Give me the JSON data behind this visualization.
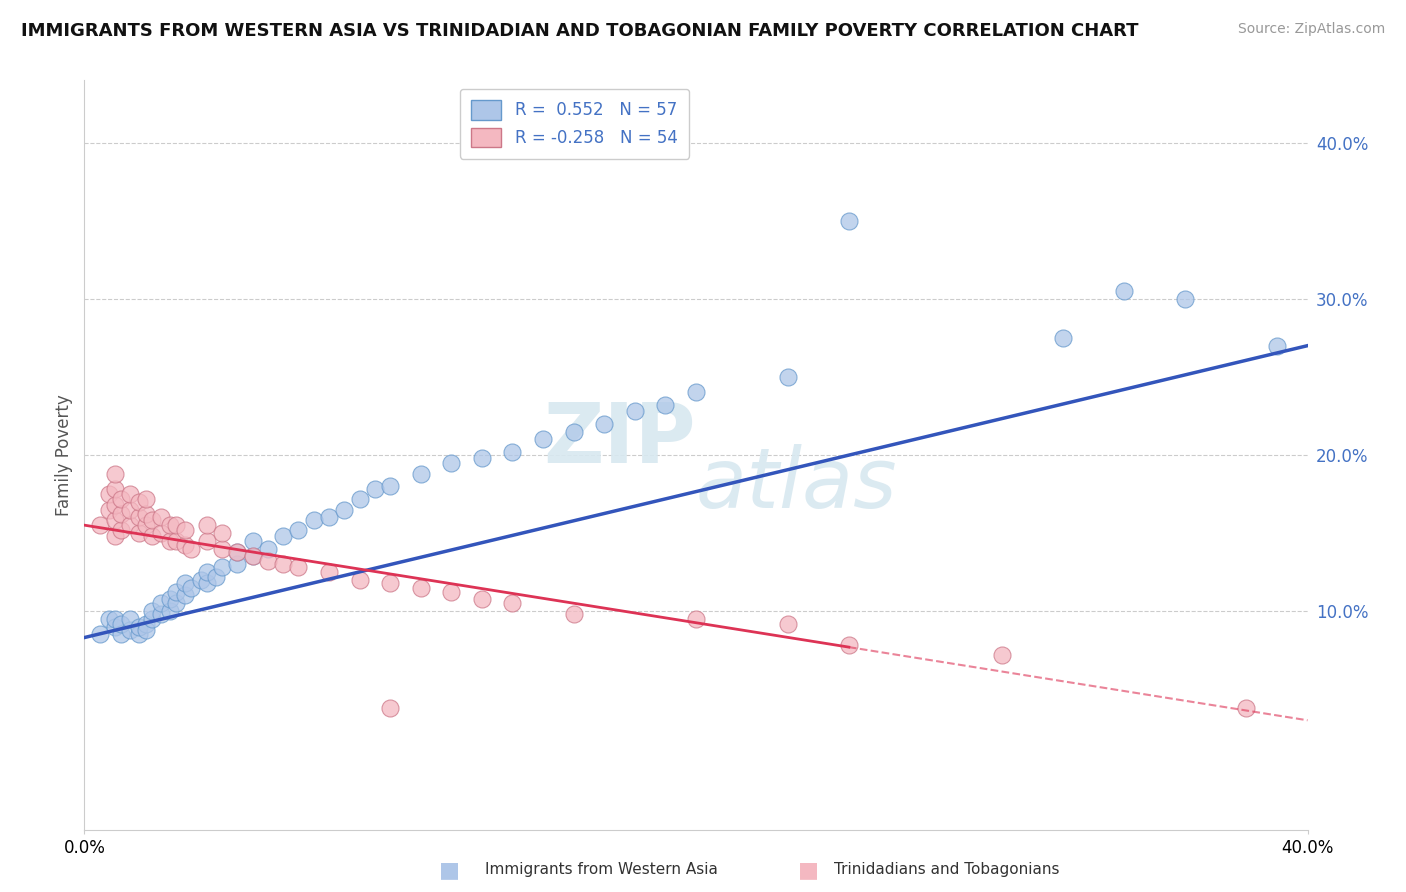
{
  "title": "IMMIGRANTS FROM WESTERN ASIA VS TRINIDADIAN AND TOBAGONIAN FAMILY POVERTY CORRELATION CHART",
  "source": "Source: ZipAtlas.com",
  "ylabel": "Family Poverty",
  "yticks": [
    "10.0%",
    "20.0%",
    "30.0%",
    "40.0%"
  ],
  "ytick_values": [
    0.1,
    0.2,
    0.3,
    0.4
  ],
  "xmin": 0.0,
  "xmax": 0.4,
  "ymin": -0.04,
  "ymax": 0.44,
  "legend1_label": "R =  0.552   N = 57",
  "legend2_label": "R = -0.258   N = 54",
  "legend1_color": "#aec6e8",
  "legend2_color": "#f4b8c1",
  "legend1_edge": "#6699CC",
  "legend2_edge": "#CC7788",
  "line1_color": "#3355BB",
  "line2_color": "#DD3355",
  "watermark_color": "#d8e8f0",
  "scatter_blue": [
    [
      0.005,
      0.085
    ],
    [
      0.008,
      0.095
    ],
    [
      0.01,
      0.09
    ],
    [
      0.01,
      0.095
    ],
    [
      0.012,
      0.085
    ],
    [
      0.012,
      0.092
    ],
    [
      0.015,
      0.088
    ],
    [
      0.015,
      0.095
    ],
    [
      0.018,
      0.085
    ],
    [
      0.018,
      0.09
    ],
    [
      0.02,
      0.092
    ],
    [
      0.02,
      0.088
    ],
    [
      0.022,
      0.095
    ],
    [
      0.022,
      0.1
    ],
    [
      0.025,
      0.098
    ],
    [
      0.025,
      0.105
    ],
    [
      0.028,
      0.1
    ],
    [
      0.028,
      0.108
    ],
    [
      0.03,
      0.105
    ],
    [
      0.03,
      0.112
    ],
    [
      0.033,
      0.11
    ],
    [
      0.033,
      0.118
    ],
    [
      0.035,
      0.115
    ],
    [
      0.038,
      0.12
    ],
    [
      0.04,
      0.118
    ],
    [
      0.04,
      0.125
    ],
    [
      0.043,
      0.122
    ],
    [
      0.045,
      0.128
    ],
    [
      0.05,
      0.13
    ],
    [
      0.05,
      0.138
    ],
    [
      0.055,
      0.135
    ],
    [
      0.055,
      0.145
    ],
    [
      0.06,
      0.14
    ],
    [
      0.065,
      0.148
    ],
    [
      0.07,
      0.152
    ],
    [
      0.075,
      0.158
    ],
    [
      0.08,
      0.16
    ],
    [
      0.085,
      0.165
    ],
    [
      0.09,
      0.172
    ],
    [
      0.095,
      0.178
    ],
    [
      0.1,
      0.18
    ],
    [
      0.11,
      0.188
    ],
    [
      0.12,
      0.195
    ],
    [
      0.13,
      0.198
    ],
    [
      0.14,
      0.202
    ],
    [
      0.15,
      0.21
    ],
    [
      0.16,
      0.215
    ],
    [
      0.17,
      0.22
    ],
    [
      0.18,
      0.228
    ],
    [
      0.19,
      0.232
    ],
    [
      0.2,
      0.24
    ],
    [
      0.23,
      0.25
    ],
    [
      0.25,
      0.35
    ],
    [
      0.32,
      0.275
    ],
    [
      0.34,
      0.305
    ],
    [
      0.36,
      0.3
    ],
    [
      0.39,
      0.27
    ]
  ],
  "scatter_pink": [
    [
      0.005,
      0.155
    ],
    [
      0.008,
      0.165
    ],
    [
      0.008,
      0.175
    ],
    [
      0.01,
      0.148
    ],
    [
      0.01,
      0.158
    ],
    [
      0.01,
      0.168
    ],
    [
      0.01,
      0.178
    ],
    [
      0.01,
      0.188
    ],
    [
      0.012,
      0.152
    ],
    [
      0.012,
      0.162
    ],
    [
      0.012,
      0.172
    ],
    [
      0.015,
      0.155
    ],
    [
      0.015,
      0.165
    ],
    [
      0.015,
      0.175
    ],
    [
      0.018,
      0.15
    ],
    [
      0.018,
      0.16
    ],
    [
      0.018,
      0.17
    ],
    [
      0.02,
      0.155
    ],
    [
      0.02,
      0.162
    ],
    [
      0.02,
      0.172
    ],
    [
      0.022,
      0.148
    ],
    [
      0.022,
      0.158
    ],
    [
      0.025,
      0.15
    ],
    [
      0.025,
      0.16
    ],
    [
      0.028,
      0.145
    ],
    [
      0.028,
      0.155
    ],
    [
      0.03,
      0.145
    ],
    [
      0.03,
      0.155
    ],
    [
      0.033,
      0.142
    ],
    [
      0.033,
      0.152
    ],
    [
      0.035,
      0.14
    ],
    [
      0.04,
      0.145
    ],
    [
      0.04,
      0.155
    ],
    [
      0.045,
      0.14
    ],
    [
      0.045,
      0.15
    ],
    [
      0.05,
      0.138
    ],
    [
      0.055,
      0.135
    ],
    [
      0.06,
      0.132
    ],
    [
      0.065,
      0.13
    ],
    [
      0.07,
      0.128
    ],
    [
      0.08,
      0.125
    ],
    [
      0.09,
      0.12
    ],
    [
      0.1,
      0.118
    ],
    [
      0.11,
      0.115
    ],
    [
      0.12,
      0.112
    ],
    [
      0.13,
      0.108
    ],
    [
      0.14,
      0.105
    ],
    [
      0.16,
      0.098
    ],
    [
      0.2,
      0.095
    ],
    [
      0.23,
      0.092
    ],
    [
      0.25,
      0.078
    ],
    [
      0.3,
      0.072
    ],
    [
      0.38,
      0.038
    ],
    [
      0.1,
      0.038
    ]
  ],
  "line1_x": [
    0.0,
    0.4
  ],
  "line1_y": [
    0.083,
    0.27
  ],
  "line2_x": [
    0.0,
    0.4
  ],
  "line2_y": [
    0.155,
    0.03
  ]
}
